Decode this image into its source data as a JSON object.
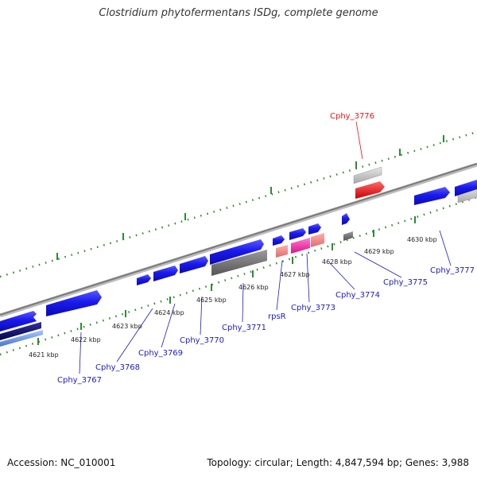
{
  "title": "Clostridium phytofermentans ISDg, complete genome",
  "footer": {
    "accession": "Accession: NC_010001",
    "summary": "Topology: circular; Length: 4,847,594 bp; Genes: 3,988"
  },
  "colors": {
    "backbone": "#8a8a8a",
    "tick": "#2e8b2e",
    "gene_forward": "#1a1aee",
    "label": "#1a1acc",
    "highlight": "#ee1111",
    "pseudo": "#c8c8c8",
    "rna": "#ff44aa"
  },
  "tick_labels": [
    "4621 kbp",
    "4622 kbp",
    "4623 kbp",
    "4624 kbp",
    "4625 kbp",
    "4626 kbp",
    "4627 kbp",
    "4628 kbp",
    "4629 kbp",
    "4630 kbp"
  ],
  "gene_labels": [
    "Cphy_3767",
    "Cphy_3768",
    "Cphy_3769",
    "Cphy_3770",
    "Cphy_3771",
    "rpsR",
    "Cphy_3773",
    "Cphy_3774",
    "Cphy_3775",
    "Cphy_3777"
  ],
  "highlight_label": "Cphy_3776"
}
